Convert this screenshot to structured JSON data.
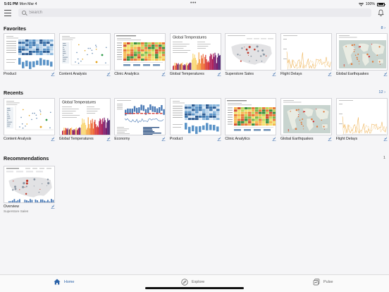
{
  "status_bar": {
    "time": "5:01 PM",
    "date": "Mon Mar 4",
    "battery": "100%"
  },
  "search": {
    "placeholder": "Search"
  },
  "sections": {
    "favorites": {
      "title": "Favorites",
      "count": "8 ›",
      "items": [
        {
          "label": "Product",
          "thumb": "heatmap-blue"
        },
        {
          "label": "Content Analysis",
          "thumb": "scatter"
        },
        {
          "label": "Clinic Analytics",
          "thumb": "heatmap-green"
        },
        {
          "label": "Global Temperatures",
          "thumb": "temperature",
          "thumb_title": "Global Temperatures"
        },
        {
          "label": "Superstore Sales",
          "thumb": "usmap"
        },
        {
          "label": "Flight Delays",
          "thumb": "flight"
        },
        {
          "label": "Global Earthquakes",
          "thumb": "worldmap"
        }
      ]
    },
    "recents": {
      "title": "Recents",
      "count": "12 ›",
      "items": [
        {
          "label": "Content Analysis",
          "thumb": "scatter"
        },
        {
          "label": "Global Temperatures",
          "thumb": "temperature",
          "thumb_title": "Global Temperatures"
        },
        {
          "label": "Economy",
          "thumb": "economy"
        },
        {
          "label": "Product",
          "thumb": "heatmap-blue"
        },
        {
          "label": "Clinic Analytics",
          "thumb": "heatmap-green"
        },
        {
          "label": "Global Earthquakes",
          "thumb": "worldmap"
        },
        {
          "label": "Flight Delays",
          "thumb": "flight"
        }
      ]
    },
    "recommendations": {
      "title": "Recommendations",
      "count": "1",
      "items": [
        {
          "label": "Overview",
          "sublabel": "Superstore Sales",
          "thumb": "usmap-bars"
        }
      ]
    }
  },
  "tabbar": {
    "home": "Home",
    "explore": "Explore",
    "pulse": "Pulse"
  },
  "colors": {
    "accent": "#2a62a8",
    "background": "#f5f5f7"
  }
}
